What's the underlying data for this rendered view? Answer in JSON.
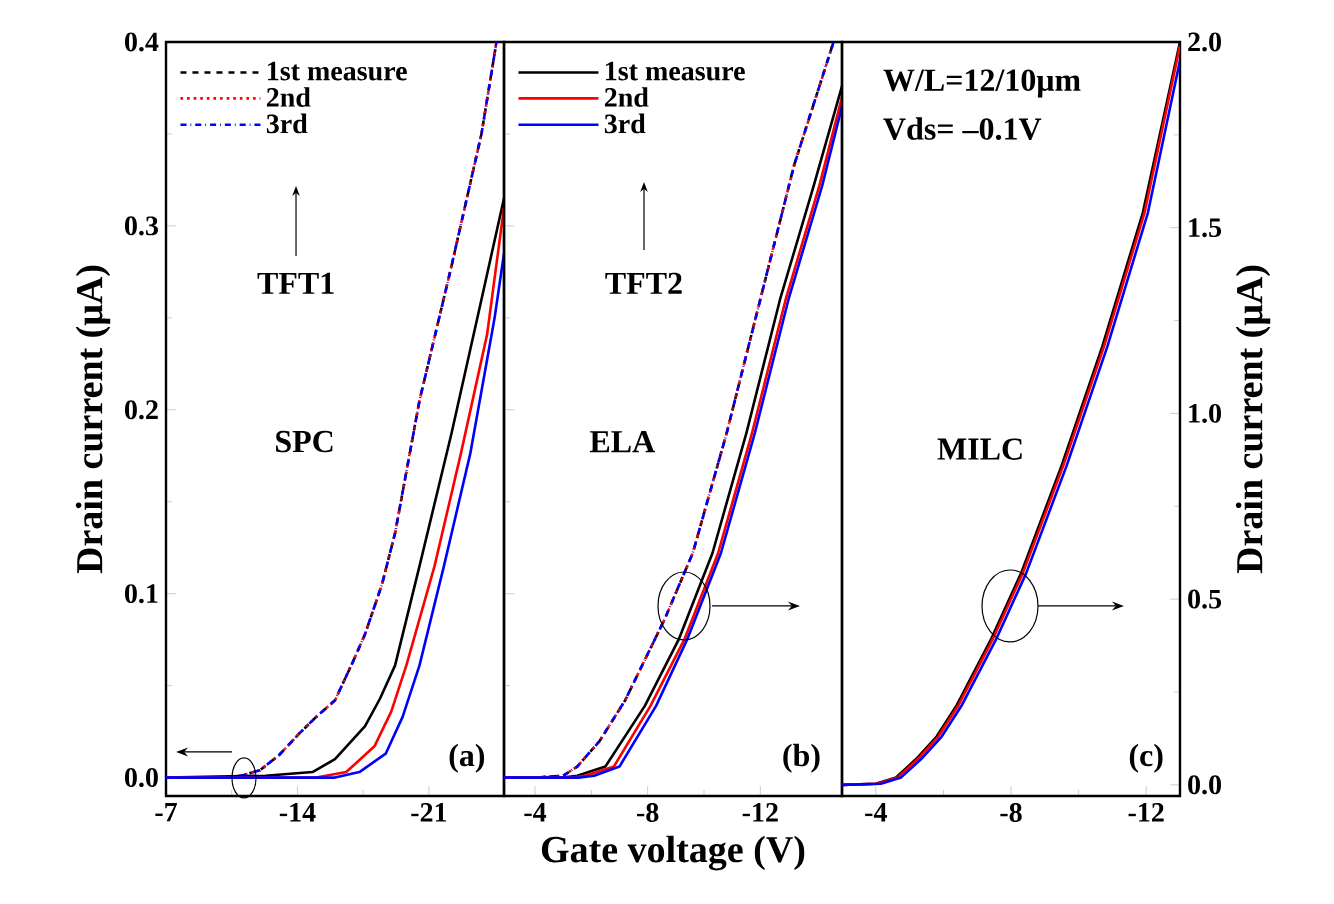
{
  "chart_data": [
    {
      "type": "line",
      "ylabel": "Drain current (μA)",
      "xlim": [
        -7,
        -25
      ],
      "xticks": [
        -7,
        -14,
        -21
      ],
      "ylim": [
        -0.01,
        0.4
      ],
      "yticks": [
        {
          "value": 0,
          "label": "0.0"
        },
        0.1,
        0.2,
        0.3,
        0.4
      ],
      "legend": "top left",
      "annotations": [
        "TFT1",
        "SPC",
        "(a)"
      ],
      "series": [
        {
          "name": "1st measure",
          "color": "#000000",
          "line_style": "dashed",
          "x": [
            -7,
            -10,
            -11,
            -12,
            -13,
            -14.1,
            -15,
            -16,
            -17,
            -17.6,
            -18.5,
            -19.2,
            -20.5,
            -22.2,
            -23.8,
            -24.6
          ],
          "values": [
            0,
            0,
            0.001,
            0.004,
            0.012,
            0.024,
            0.033,
            0.042,
            0.064,
            0.078,
            0.105,
            0.133,
            0.205,
            0.278,
            0.35,
            0.4
          ]
        },
        {
          "name": "2nd",
          "color": "#ff0000",
          "line_style": "dotted",
          "x": [
            -7,
            -10,
            -11,
            -12,
            -13,
            -14.1,
            -15,
            -16,
            -17,
            -17.6,
            -18.5,
            -19.2,
            -20.5,
            -22.2,
            -23.8,
            -24.6
          ],
          "values": [
            0,
            0,
            0.001,
            0.004,
            0.012,
            0.024,
            0.033,
            0.042,
            0.064,
            0.078,
            0.105,
            0.133,
            0.205,
            0.278,
            0.35,
            0.4
          ]
        },
        {
          "name": "3rd",
          "color": "#0000ff",
          "line_style": "dashdot",
          "x": [
            -7,
            -10,
            -11,
            -12,
            -13,
            -14.1,
            -15,
            -16,
            -17,
            -17.6,
            -18.5,
            -19.2,
            -20.5,
            -22.2,
            -23.8,
            -24.6
          ],
          "values": [
            0,
            0,
            0.001,
            0.004,
            0.012,
            0.024,
            0.033,
            0.042,
            0.064,
            0.078,
            0.105,
            0.133,
            0.205,
            0.278,
            0.35,
            0.4
          ]
        },
        {
          "color": "#000000",
          "line_style": "solid",
          "x": [
            -7,
            -12.3,
            -14.8,
            -16,
            -17.6,
            -18.4,
            -19.2,
            -20.5,
            -22.2,
            -23.8,
            -25
          ],
          "values": [
            0,
            0.001,
            0.003,
            0.01,
            0.028,
            0.043,
            0.061,
            0.115,
            0.187,
            0.26,
            0.315
          ]
        },
        {
          "color": "#ff0000",
          "line_style": "solid",
          "x": [
            -7,
            -15,
            -16.6,
            -18.1,
            -19,
            -19.8,
            -21.3,
            -22.7,
            -24.1,
            -25
          ],
          "values": [
            0,
            0,
            0.003,
            0.017,
            0.036,
            0.061,
            0.115,
            0.176,
            0.241,
            0.31
          ]
        },
        {
          "color": "#0000ff",
          "line_style": "solid",
          "x": [
            -7,
            -16,
            -17.3,
            -18.7,
            -19.6,
            -20.5,
            -21.8,
            -23.2,
            -24.5,
            -25
          ],
          "values": [
            0,
            0,
            0.003,
            0.013,
            0.033,
            0.061,
            0.115,
            0.176,
            0.25,
            0.285
          ]
        }
      ]
    },
    {
      "type": "line",
      "xlabel": "Gate voltage (V)",
      "xlim": [
        -2.9,
        -14.9
      ],
      "xticks": [
        -4,
        -8,
        -12
      ],
      "ylim": [
        -0.01,
        0.4
      ],
      "yticks": [
        0,
        0.1,
        0.2,
        0.3,
        0.4
      ],
      "tick_labels": "x",
      "legend": "top left",
      "annotations": [
        "TFT2",
        "ELA",
        "(b)"
      ],
      "series": [
        {
          "color": "#000000",
          "line_style": "dashed",
          "x": [
            -2.9,
            -4,
            -5,
            -5.5,
            -6.3,
            -7.2,
            -8.6,
            -9.6,
            -10.8,
            -12,
            -13.2,
            -14.6
          ],
          "values": [
            0,
            0,
            0.001,
            0.006,
            0.02,
            0.042,
            0.086,
            0.122,
            0.187,
            0.26,
            0.333,
            0.4
          ]
        },
        {
          "color": "#ff0000",
          "line_style": "dotted",
          "x": [
            -2.9,
            -4,
            -5,
            -5.5,
            -6.3,
            -7.2,
            -8.6,
            -9.6,
            -10.8,
            -12,
            -13.2,
            -14.6
          ],
          "values": [
            0,
            0,
            0.001,
            0.006,
            0.02,
            0.042,
            0.086,
            0.122,
            0.187,
            0.26,
            0.333,
            0.4
          ]
        },
        {
          "color": "#0000ff",
          "line_style": "dashdot",
          "x": [
            -2.9,
            -4,
            -5,
            -5.5,
            -6.3,
            -7.2,
            -8.6,
            -9.6,
            -10.8,
            -12,
            -13.2,
            -14.6
          ],
          "values": [
            0,
            0,
            0.001,
            0.006,
            0.02,
            0.042,
            0.086,
            0.122,
            0.187,
            0.26,
            0.333,
            0.4
          ]
        },
        {
          "name": "1st measure",
          "color": "#000000",
          "line_style": "solid",
          "x": [
            -2.9,
            -5,
            -5.5,
            -6.5,
            -7.9,
            -9.1,
            -10.3,
            -11.5,
            -12.7,
            -13.9,
            -14.9
          ],
          "values": [
            0,
            0,
            0.001,
            0.006,
            0.039,
            0.075,
            0.122,
            0.187,
            0.26,
            0.322,
            0.376
          ]
        },
        {
          "name": "2nd",
          "color": "#ff0000",
          "line_style": "solid",
          "x": [
            -2.9,
            -5.3,
            -5.8,
            -6.8,
            -8.1,
            -9.3,
            -10.5,
            -11.7,
            -12.9,
            -14.1,
            -14.9
          ],
          "values": [
            0,
            0,
            0.001,
            0.006,
            0.039,
            0.075,
            0.122,
            0.187,
            0.26,
            0.322,
            0.37
          ]
        },
        {
          "name": "3rd",
          "color": "#0000ff",
          "line_style": "solid",
          "x": [
            -2.9,
            -5.6,
            -6.1,
            -7,
            -8.3,
            -9.4,
            -10.6,
            -11.8,
            -13,
            -14.2,
            -14.9
          ],
          "values": [
            0,
            0,
            0.001,
            0.006,
            0.039,
            0.075,
            0.122,
            0.187,
            0.26,
            0.322,
            0.365
          ]
        }
      ]
    },
    {
      "type": "line",
      "y2label": "Drain current (μA)",
      "xlim": [
        -3,
        -13
      ],
      "xticks": [
        -4,
        -8,
        -12
      ],
      "y2lim": [
        -0.03,
        2.0
      ],
      "y2ticks": [
        {
          "value": 0,
          "label": "0.0"
        },
        0.5,
        {
          "value": 1,
          "label": "1.0"
        },
        1.5,
        {
          "value": 2,
          "label": "2.0"
        }
      ],
      "annotations": [
        "W/L=12/10μm",
        "Vds= –0.1V",
        "MILC",
        "(c)"
      ],
      "series": [
        {
          "axis": "y2",
          "color": "#000000",
          "line_style": "solid",
          "x": [
            -3,
            -4,
            -4.6,
            -5.2,
            -5.8,
            -6.4,
            -7.4,
            -8.3,
            -9.5,
            -10.7,
            -11.9,
            -13
          ],
          "values": [
            0,
            0.003,
            0.02,
            0.07,
            0.13,
            0.215,
            0.39,
            0.57,
            0.86,
            1.18,
            1.54,
            2.0
          ]
        },
        {
          "axis": "y2",
          "color": "#ff0000",
          "line_style": "solid",
          "x": [
            -3,
            -4.05,
            -4.65,
            -5.25,
            -5.85,
            -6.45,
            -7.45,
            -8.35,
            -9.55,
            -10.75,
            -11.95,
            -13
          ],
          "values": [
            0,
            0.003,
            0.02,
            0.07,
            0.13,
            0.215,
            0.39,
            0.57,
            0.86,
            1.18,
            1.54,
            1.99
          ]
        },
        {
          "axis": "y2",
          "color": "#0000ff",
          "line_style": "solid",
          "x": [
            -3,
            -4.15,
            -4.75,
            -5.35,
            -5.95,
            -6.55,
            -7.55,
            -8.45,
            -9.65,
            -10.85,
            -12.05,
            -13
          ],
          "values": [
            0,
            0.003,
            0.02,
            0.07,
            0.13,
            0.215,
            0.39,
            0.57,
            0.86,
            1.18,
            1.54,
            1.95
          ]
        }
      ]
    }
  ]
}
